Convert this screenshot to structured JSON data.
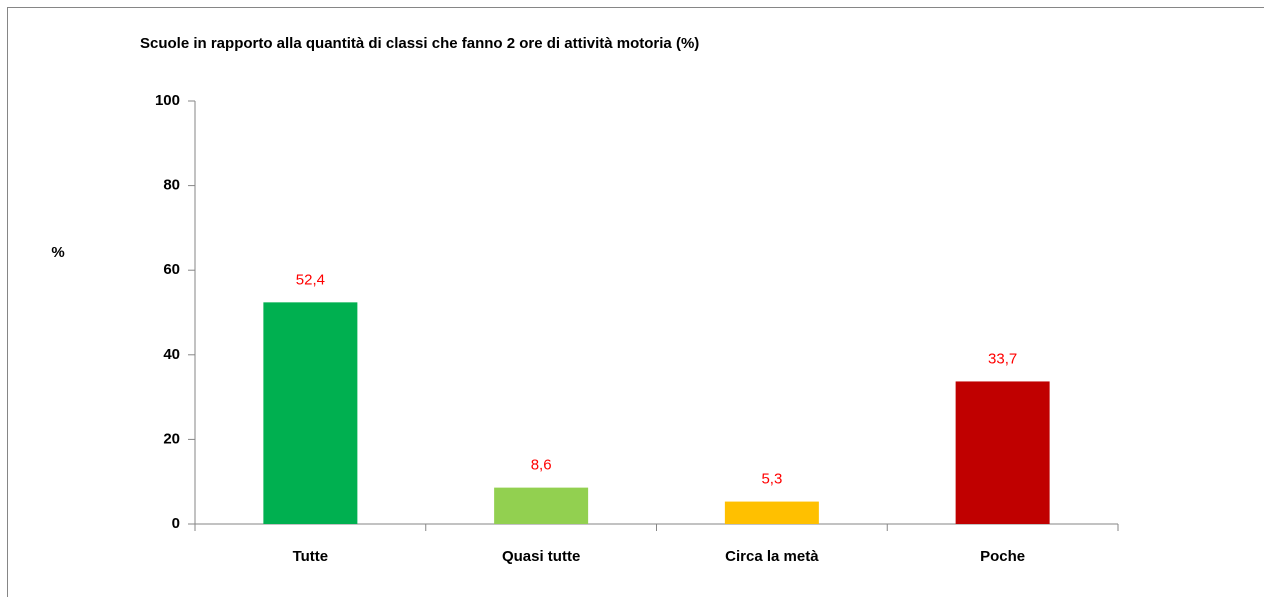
{
  "chart_data": {
    "type": "bar",
    "title": "Scuole  in rapporto alla quantità di classi che fanno 2 ore di attività motoria  (%)",
    "y_label": "%",
    "categories": [
      "Tutte",
      "Quasi tutte",
      "Circa la metà",
      "Poche"
    ],
    "values": [
      52.4,
      8.6,
      5.3,
      33.7
    ],
    "value_labels": [
      "52,4",
      "8,6",
      "5,3",
      "33,7"
    ],
    "colors": [
      "#00b050",
      "#92d050",
      "#ffc000",
      "#c00000"
    ],
    "ylim": [
      0,
      100
    ],
    "yticks": [
      0,
      20,
      40,
      60,
      80,
      100
    ],
    "grid": false
  }
}
